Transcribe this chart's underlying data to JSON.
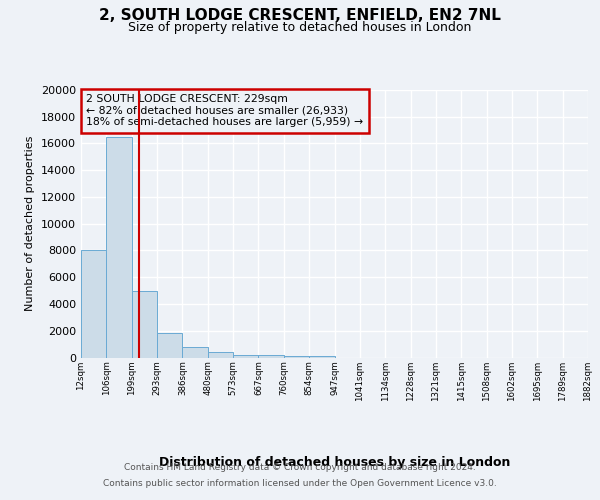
{
  "title_line1": "2, SOUTH LODGE CRESCENT, ENFIELD, EN2 7NL",
  "title_line2": "Size of property relative to detached houses in London",
  "xlabel": "Distribution of detached houses by size in London",
  "ylabel": "Number of detached properties",
  "annotation_title": "2 SOUTH LODGE CRESCENT: 229sqm",
  "annotation_line2": "← 82% of detached houses are smaller (26,933)",
  "annotation_line3": "18% of semi-detached houses are larger (5,959) →",
  "footnote1": "Contains HM Land Registry data © Crown copyright and database right 2024.",
  "footnote2": "Contains public sector information licensed under the Open Government Licence v3.0.",
  "bar_color": "#ccdce8",
  "bar_edge_color": "#6aaad4",
  "redline_color": "#cc0000",
  "annotation_box_color": "#cc0000",
  "bins": [
    "12sqm",
    "106sqm",
    "199sqm",
    "293sqm",
    "386sqm",
    "480sqm",
    "573sqm",
    "667sqm",
    "760sqm",
    "854sqm",
    "947sqm",
    "1041sqm",
    "1134sqm",
    "1228sqm",
    "1321sqm",
    "1415sqm",
    "1508sqm",
    "1602sqm",
    "1695sqm",
    "1789sqm",
    "1882sqm"
  ],
  "values": [
    8050,
    16500,
    5000,
    1800,
    800,
    380,
    200,
    150,
    100,
    110,
    0,
    0,
    0,
    0,
    0,
    0,
    0,
    0,
    0,
    0
  ],
  "redline_x": 2.3,
  "ylim": [
    0,
    20000
  ],
  "yticks": [
    0,
    2000,
    4000,
    6000,
    8000,
    10000,
    12000,
    14000,
    16000,
    18000,
    20000
  ],
  "background_color": "#eef2f7",
  "plot_background": "#eef2f7",
  "grid_color": "#ffffff"
}
